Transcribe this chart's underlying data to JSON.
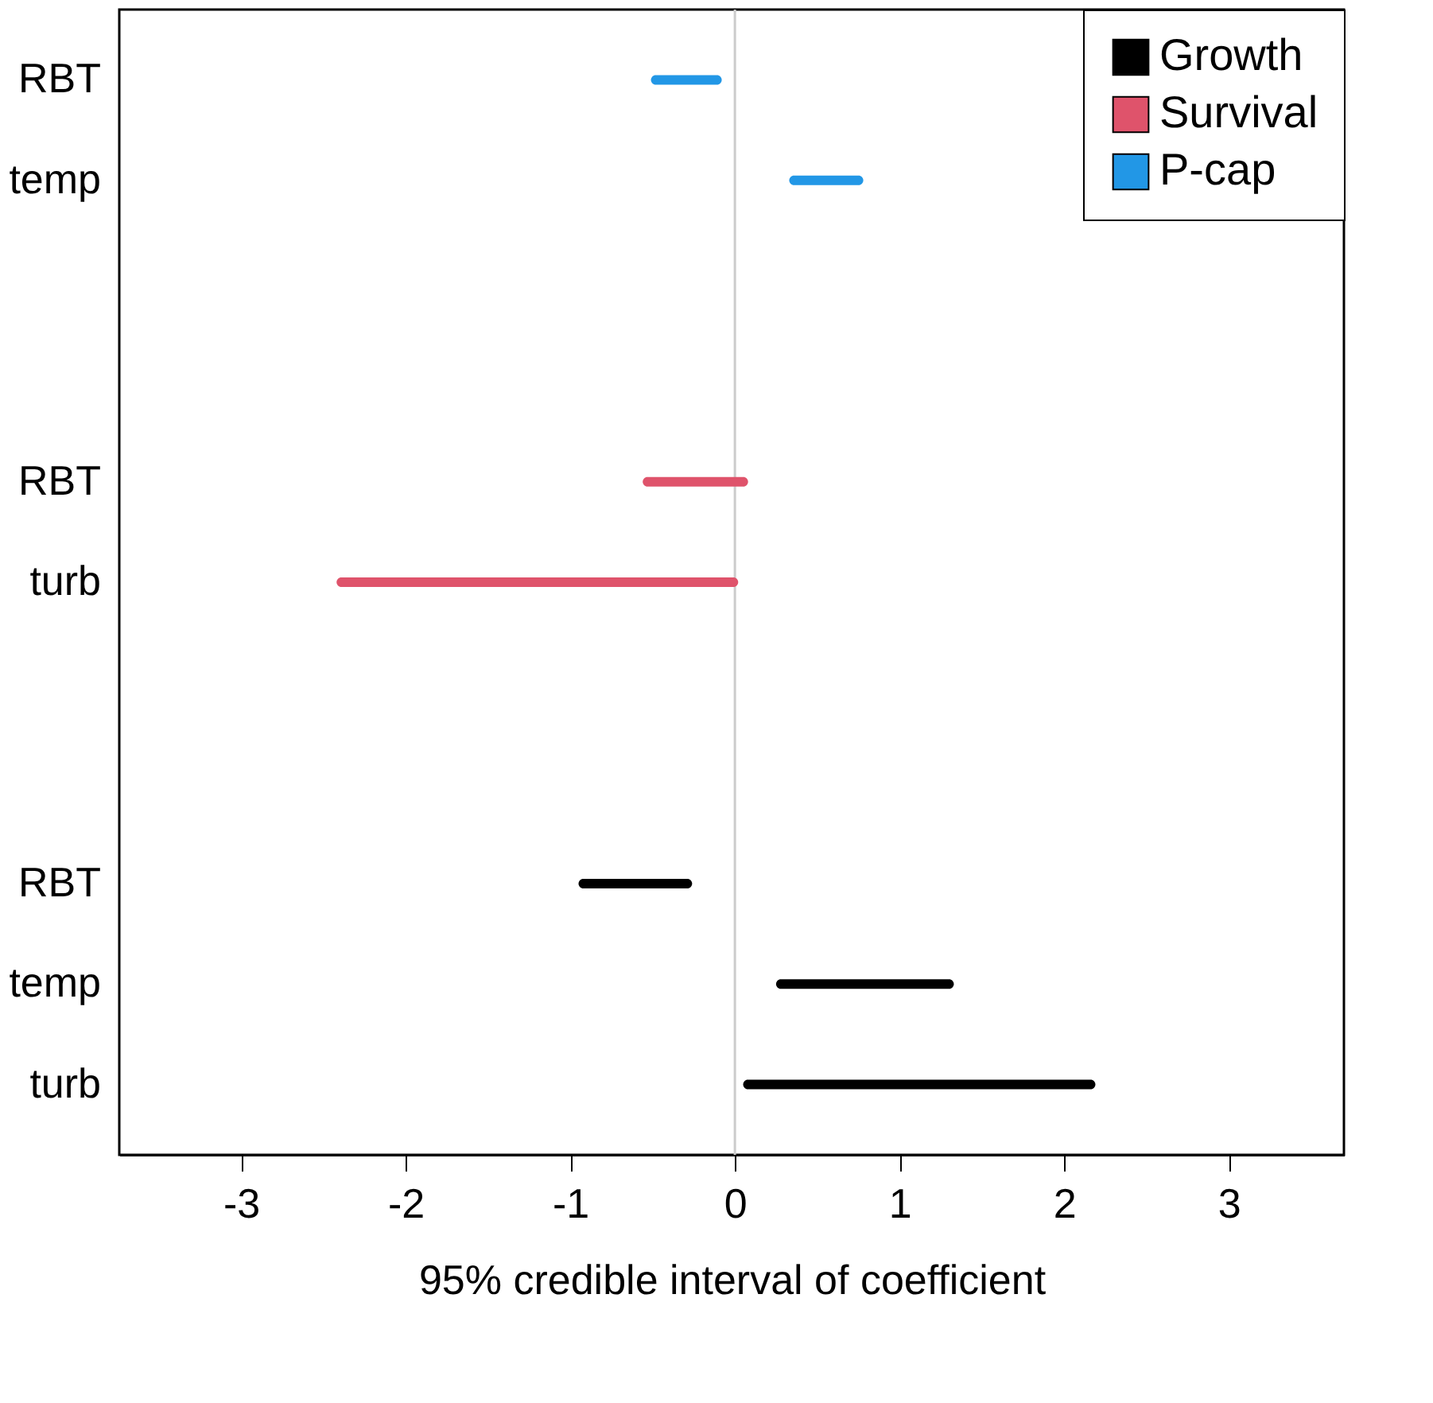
{
  "chart_data": {
    "type": "bar",
    "orientation": "horizontal",
    "xlabel": "95% credible interval of coefficient",
    "categories": [
      "RBT",
      "temp",
      null,
      null,
      "RBT",
      "turb",
      null,
      null,
      "RBT",
      "temp",
      "turb"
    ],
    "series": [
      {
        "name": "Growth",
        "color": "#000000",
        "base": [
          null,
          null,
          null,
          null,
          null,
          null,
          null,
          null,
          -0.95,
          0.25,
          0.05
        ],
        "values": [
          null,
          null,
          null,
          null,
          null,
          null,
          null,
          null,
          0.69,
          1.08,
          2.14
        ]
      },
      {
        "name": "Survival",
        "color": "#df536b",
        "base": [
          null,
          null,
          null,
          null,
          -0.56,
          -2.42,
          null,
          null,
          null,
          null,
          null
        ],
        "values": [
          null,
          null,
          null,
          null,
          0.64,
          2.44,
          null,
          null,
          null,
          null,
          null
        ]
      },
      {
        "name": "P-cap",
        "color": "#2297e6",
        "base": [
          -0.51,
          0.33,
          null,
          null,
          null,
          null,
          null,
          null,
          null,
          null,
          null
        ],
        "values": [
          0.43,
          0.45,
          null,
          null,
          null,
          null,
          null,
          null,
          null,
          null,
          null
        ]
      }
    ],
    "xlim": [
      -3.74,
      3.7
    ],
    "xticks": [
      -3,
      -2,
      -1,
      0,
      1,
      2,
      3
    ],
    "ref_lines": [
      {
        "axis": "x",
        "value": 0,
        "color": "#cccccc"
      }
    ],
    "legend": "top right",
    "grid": false
  }
}
